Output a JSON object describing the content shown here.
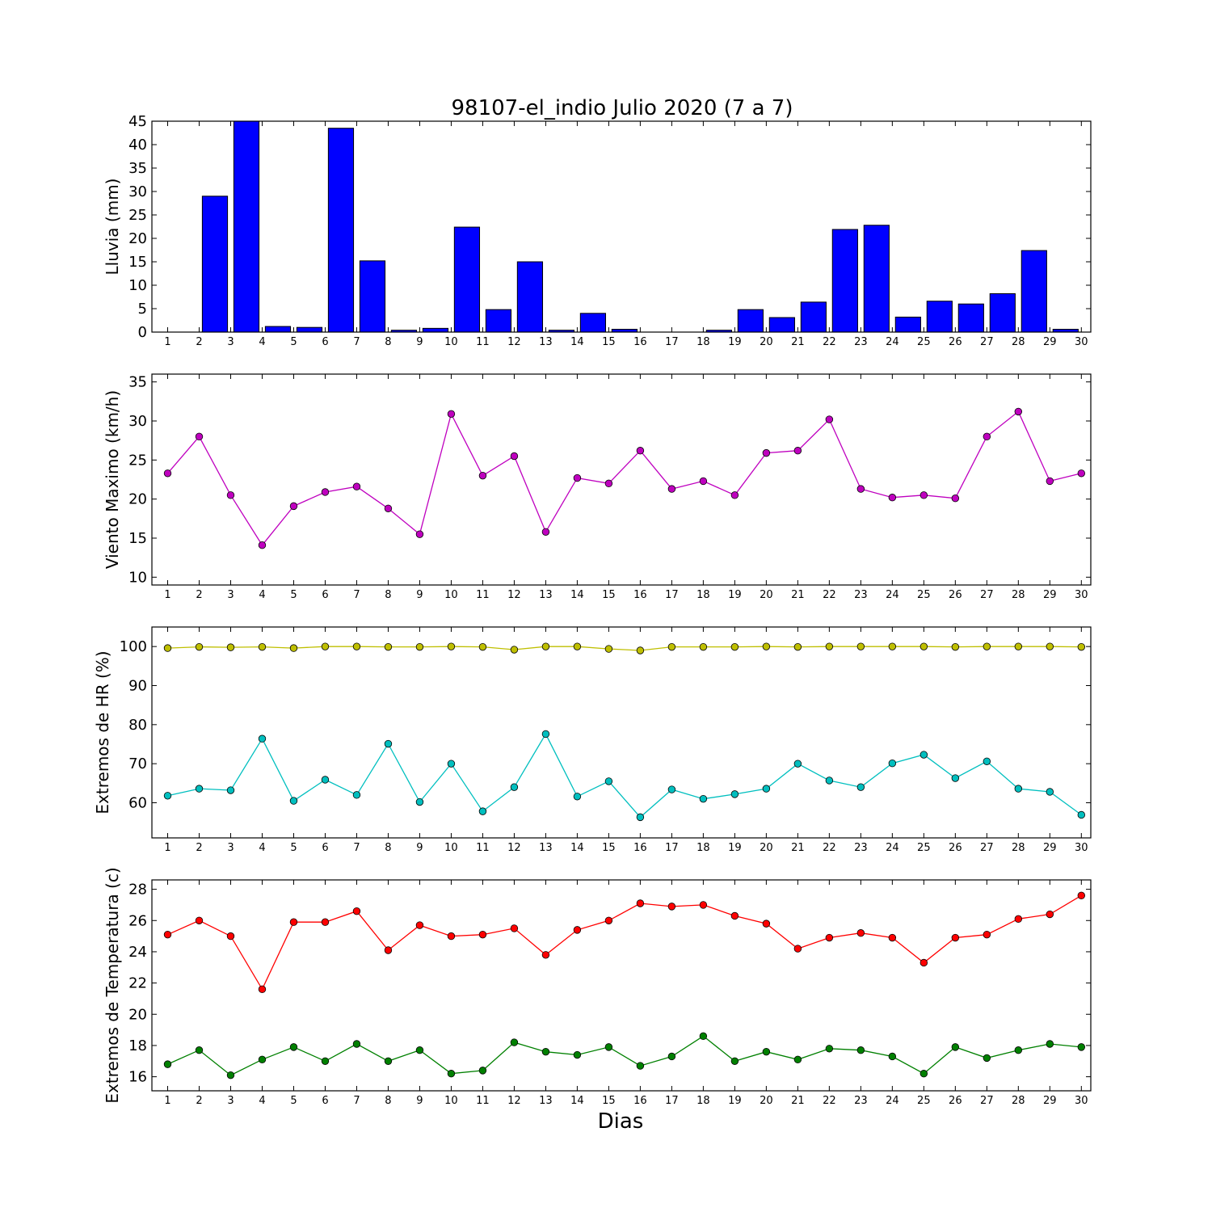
{
  "title": "98107-el_indio Julio 2020  (7 a 7)",
  "xlabel": "Dias",
  "chart_data": [
    {
      "type": "bar",
      "ylabel": "Lluvia (mm)",
      "x": [
        1,
        2,
        3,
        4,
        5,
        6,
        7,
        8,
        9,
        10,
        11,
        12,
        13,
        14,
        15,
        16,
        17,
        18,
        19,
        20,
        21,
        22,
        23,
        24,
        25,
        26,
        27,
        28,
        29,
        30
      ],
      "ylim": [
        0,
        45
      ],
      "yticks": [
        0,
        5,
        10,
        15,
        20,
        25,
        30,
        35,
        40,
        45
      ],
      "color": "#0000ff",
      "series": [
        {
          "values": [
            0,
            29,
            45,
            1.2,
            1,
            43.5,
            15.2,
            0.4,
            0.8,
            22.4,
            4.8,
            15,
            0.4,
            4,
            0.6,
            0,
            0,
            0.4,
            4.8,
            3.1,
            6.4,
            21.9,
            22.8,
            3.2,
            6.6,
            6,
            8.2,
            17.4,
            0.6,
            0
          ]
        }
      ]
    },
    {
      "type": "line",
      "ylabel": "Viento Maximo (km/h)",
      "x": [
        1,
        2,
        3,
        4,
        5,
        6,
        7,
        8,
        9,
        10,
        11,
        12,
        13,
        14,
        15,
        16,
        17,
        18,
        19,
        20,
        21,
        22,
        23,
        24,
        25,
        26,
        27,
        28,
        29,
        30
      ],
      "ylim": [
        9,
        36
      ],
      "yticks": [
        10,
        15,
        20,
        25,
        30,
        35
      ],
      "series": [
        {
          "color": "#bf00bf",
          "values": [
            23.3,
            28,
            20.5,
            14.1,
            19.1,
            20.9,
            21.6,
            18.8,
            15.5,
            30.9,
            23,
            25.5,
            15.8,
            22.7,
            22,
            26.2,
            21.3,
            22.3,
            20.5,
            25.9,
            26.2,
            30.2,
            21.3,
            20.2,
            20.5,
            20.1,
            28,
            31.2,
            22.3,
            23.3
          ]
        }
      ]
    },
    {
      "type": "line",
      "ylabel": "Extremos de HR (%)",
      "x": [
        1,
        2,
        3,
        4,
        5,
        6,
        7,
        8,
        9,
        10,
        11,
        12,
        13,
        14,
        15,
        16,
        17,
        18,
        19,
        20,
        21,
        22,
        23,
        24,
        25,
        26,
        27,
        28,
        29,
        30
      ],
      "ylim": [
        51,
        105
      ],
      "yticks": [
        60,
        70,
        80,
        90,
        100
      ],
      "series": [
        {
          "color": "#bfbf00",
          "values": [
            99.6,
            99.9,
            99.8,
            99.9,
            99.6,
            100,
            100,
            99.9,
            99.9,
            100,
            99.9,
            99.2,
            100,
            100,
            99.4,
            99,
            99.9,
            99.9,
            99.9,
            100,
            99.9,
            100,
            100,
            100,
            100,
            99.9,
            100,
            100,
            100,
            99.9
          ]
        },
        {
          "color": "#00bfbf",
          "values": [
            61.8,
            63.6,
            63.2,
            76.4,
            60.5,
            65.9,
            62,
            75.1,
            60.2,
            70,
            57.8,
            64,
            77.6,
            61.6,
            65.5,
            56.3,
            63.4,
            61,
            62.2,
            63.6,
            70,
            65.7,
            64,
            70.1,
            72.3,
            66.3,
            70.6,
            63.6,
            62.8,
            56.9
          ]
        }
      ]
    },
    {
      "type": "line",
      "ylabel": "Extremos de Temperatura (c)",
      "x": [
        1,
        2,
        3,
        4,
        5,
        6,
        7,
        8,
        9,
        10,
        11,
        12,
        13,
        14,
        15,
        16,
        17,
        18,
        19,
        20,
        21,
        22,
        23,
        24,
        25,
        26,
        27,
        28,
        29,
        30
      ],
      "ylim": [
        15.1,
        28.6
      ],
      "yticks": [
        16,
        18,
        20,
        22,
        24,
        26,
        28
      ],
      "series": [
        {
          "color": "#ff0000",
          "values": [
            25.1,
            26,
            25,
            21.6,
            25.9,
            25.9,
            26.6,
            24.1,
            25.7,
            25,
            25.1,
            25.5,
            23.8,
            25.4,
            26,
            27.1,
            26.9,
            27,
            26.3,
            25.8,
            24.2,
            24.9,
            25.2,
            24.9,
            23.3,
            24.9,
            25.1,
            26.1,
            26.4,
            27.6
          ]
        },
        {
          "color": "#008000",
          "values": [
            16.8,
            17.7,
            16.1,
            17.1,
            17.9,
            17,
            18.1,
            17,
            17.7,
            16.2,
            16.4,
            18.2,
            17.6,
            17.4,
            17.9,
            16.7,
            17.3,
            18.6,
            17,
            17.6,
            17.1,
            17.8,
            17.7,
            17.3,
            16.2,
            17.9,
            17.2,
            17.7,
            18.1,
            17.9
          ]
        }
      ]
    }
  ]
}
